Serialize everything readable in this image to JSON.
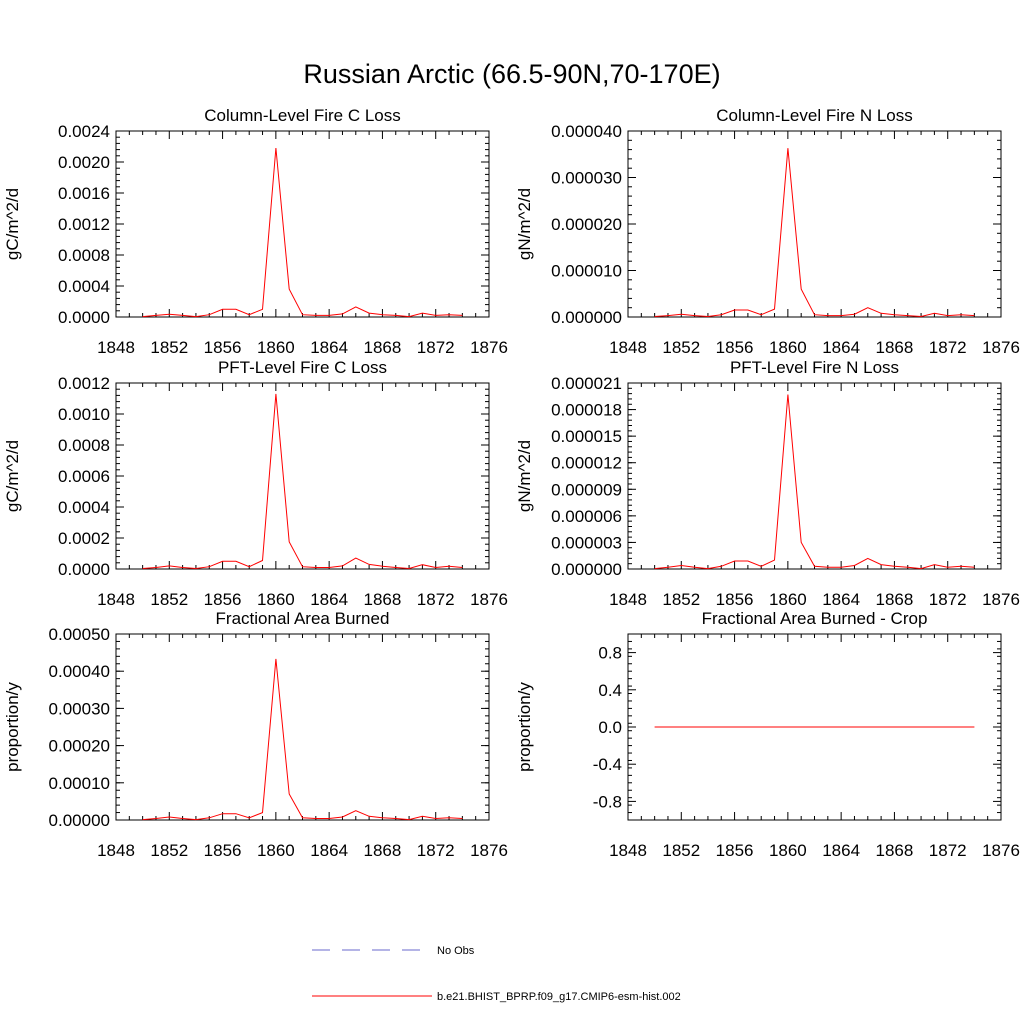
{
  "page_title": "Russian Arctic (66.5-90N,70-170E)",
  "colors": {
    "series": "#ff0000",
    "obs": "#6a6acd",
    "axis": "#000000"
  },
  "legend": {
    "entries": [
      {
        "label": "No Obs",
        "style": "dashed",
        "color": "#6a6acd"
      },
      {
        "label": "b.e21.BHIST_BPRP.f09_g17.CMIP6-esm-hist.002",
        "style": "solid",
        "color": "#ff0000"
      }
    ]
  },
  "chart_data": [
    {
      "type": "line",
      "title": "Column-Level Fire C Loss",
      "ylabel": "gC/m^2/d",
      "xlabel": "",
      "xlim": [
        1848,
        1876
      ],
      "xticks": [
        "1848",
        "1852",
        "1856",
        "1860",
        "1864",
        "1868",
        "1872",
        "1876"
      ],
      "ylim": [
        0,
        0.0024
      ],
      "yticks": [
        "0.0000",
        "0.0004",
        "0.0008",
        "0.0012",
        "0.0016",
        "0.0020",
        "0.0024"
      ],
      "x": [
        1850,
        1851,
        1852,
        1853,
        1854,
        1855,
        1856,
        1857,
        1858,
        1859,
        1860,
        1861,
        1862,
        1863,
        1864,
        1865,
        1866,
        1867,
        1868,
        1869,
        1870,
        1871,
        1872,
        1873,
        1874
      ],
      "series": [
        {
          "values": [
            5e-06,
            2e-05,
            3.5e-05,
            2e-05,
            5e-06,
            3e-05,
            0.0001,
            0.0001,
            3e-05,
            0.0001,
            0.00218,
            0.00036,
            3e-05,
            2e-05,
            2e-05,
            4e-05,
            0.00013,
            5e-05,
            3e-05,
            2e-05,
            5e-06,
            5e-05,
            2e-05,
            3e-05,
            2e-05
          ]
        }
      ]
    },
    {
      "type": "line",
      "title": "Column-Level Fire N Loss",
      "ylabel": "gN/m^2/d",
      "xlabel": "",
      "xlim": [
        1848,
        1876
      ],
      "xticks": [
        "1848",
        "1852",
        "1856",
        "1860",
        "1864",
        "1868",
        "1872",
        "1876"
      ],
      "ylim": [
        0,
        4e-05
      ],
      "yticks": [
        "0.000000",
        "0.000010",
        "0.000020",
        "0.000030",
        "0.000040"
      ],
      "x": [
        1850,
        1851,
        1852,
        1853,
        1854,
        1855,
        1856,
        1857,
        1858,
        1859,
        1860,
        1861,
        1862,
        1863,
        1864,
        1865,
        1866,
        1867,
        1868,
        1869,
        1870,
        1871,
        1872,
        1873,
        1874
      ],
      "series": [
        {
          "values": [
            1e-07,
            3e-07,
            6e-07,
            3e-07,
            1e-07,
            5e-07,
            1.5e-06,
            1.5e-06,
            5e-07,
            1.7e-06,
            3.63e-05,
            6e-06,
            5e-07,
            3e-07,
            3e-07,
            6e-07,
            2e-06,
            8e-07,
            5e-07,
            3e-07,
            1e-07,
            8e-07,
            3e-07,
            5e-07,
            3e-07
          ]
        }
      ]
    },
    {
      "type": "line",
      "title": "PFT-Level Fire C Loss",
      "ylabel": "gC/m^2/d",
      "xlabel": "",
      "xlim": [
        1848,
        1876
      ],
      "xticks": [
        "1848",
        "1852",
        "1856",
        "1860",
        "1864",
        "1868",
        "1872",
        "1876"
      ],
      "ylim": [
        0,
        0.0012
      ],
      "yticks": [
        "0.0000",
        "0.0002",
        "0.0004",
        "0.0006",
        "0.0008",
        "0.0010",
        "0.0012"
      ],
      "x": [
        1850,
        1851,
        1852,
        1853,
        1854,
        1855,
        1856,
        1857,
        1858,
        1859,
        1860,
        1861,
        1862,
        1863,
        1864,
        1865,
        1866,
        1867,
        1868,
        1869,
        1870,
        1871,
        1872,
        1873,
        1874
      ],
      "series": [
        {
          "values": [
            3e-06,
            1e-05,
            2e-05,
            1e-05,
            3e-06,
            1.5e-05,
            5e-05,
            5e-05,
            1.5e-05,
            5.5e-05,
            0.00113,
            0.000175,
            1.5e-05,
            1e-05,
            1e-05,
            2e-05,
            7e-05,
            3e-05,
            1.8e-05,
            1e-05,
            3e-06,
            2.8e-05,
            1e-05,
            1.8e-05,
            1e-05
          ]
        }
      ]
    },
    {
      "type": "line",
      "title": "PFT-Level Fire N Loss",
      "ylabel": "gN/m^2/d",
      "xlabel": "",
      "xlim": [
        1848,
        1876
      ],
      "xticks": [
        "1848",
        "1852",
        "1856",
        "1860",
        "1864",
        "1868",
        "1872",
        "1876"
      ],
      "ylim": [
        0,
        2.1e-05
      ],
      "yticks": [
        "0.000000",
        "0.000003",
        "0.000006",
        "0.000009",
        "0.000012",
        "0.000015",
        "0.000018",
        "0.000021"
      ],
      "x": [
        1850,
        1851,
        1852,
        1853,
        1854,
        1855,
        1856,
        1857,
        1858,
        1859,
        1860,
        1861,
        1862,
        1863,
        1864,
        1865,
        1866,
        1867,
        1868,
        1869,
        1870,
        1871,
        1872,
        1873,
        1874
      ],
      "series": [
        {
          "values": [
            5e-08,
            2e-07,
            4e-07,
            2e-07,
            5e-08,
            3e-07,
            9e-07,
            9e-07,
            3e-07,
            1e-06,
            1.97e-05,
            3e-06,
            3e-07,
            2e-07,
            2e-07,
            4e-07,
            1.2e-06,
            5e-07,
            3e-07,
            2e-07,
            5e-08,
            5e-07,
            2e-07,
            3e-07,
            2e-07
          ]
        }
      ]
    },
    {
      "type": "line",
      "title": "Fractional Area Burned",
      "ylabel": "proportion/y",
      "xlabel": "",
      "xlim": [
        1848,
        1876
      ],
      "xticks": [
        "1848",
        "1852",
        "1856",
        "1860",
        "1864",
        "1868",
        "1872",
        "1876"
      ],
      "ylim": [
        0,
        0.0005
      ],
      "yticks": [
        "0.00000",
        "0.00010",
        "0.00020",
        "0.00030",
        "0.00040",
        "0.00050"
      ],
      "x": [
        1850,
        1851,
        1852,
        1853,
        1854,
        1855,
        1856,
        1857,
        1858,
        1859,
        1860,
        1861,
        1862,
        1863,
        1864,
        1865,
        1866,
        1867,
        1868,
        1869,
        1870,
        1871,
        1872,
        1873,
        1874
      ],
      "series": [
        {
          "values": [
            1e-06,
            4e-06,
            8e-06,
            4e-06,
            1e-06,
            6e-06,
            1.7e-05,
            1.7e-05,
            6e-06,
            2e-05,
            0.000433,
            7e-05,
            6e-06,
            4e-06,
            4e-06,
            8e-06,
            2.5e-05,
            1e-05,
            6e-06,
            4e-06,
            1e-06,
            1e-05,
            4e-06,
            6e-06,
            4e-06
          ]
        }
      ]
    },
    {
      "type": "line",
      "title": "Fractional Area Burned - Crop",
      "ylabel": "proportion/y",
      "xlabel": "",
      "xlim": [
        1848,
        1876
      ],
      "xticks": [
        "1848",
        "1852",
        "1856",
        "1860",
        "1864",
        "1868",
        "1872",
        "1876"
      ],
      "ylim": [
        -1.0,
        1.0
      ],
      "yticks": [
        "-0.8",
        "-0.4",
        "0.0",
        "0.4",
        "0.8"
      ],
      "ytick_values": [
        -0.8,
        -0.4,
        0.0,
        0.4,
        0.8
      ],
      "x": [
        1850,
        1851,
        1852,
        1853,
        1854,
        1855,
        1856,
        1857,
        1858,
        1859,
        1860,
        1861,
        1862,
        1863,
        1864,
        1865,
        1866,
        1867,
        1868,
        1869,
        1870,
        1871,
        1872,
        1873,
        1874
      ],
      "series": [
        {
          "values": [
            0,
            0,
            0,
            0,
            0,
            0,
            0,
            0,
            0,
            0,
            0,
            0,
            0,
            0,
            0,
            0,
            0,
            0,
            0,
            0,
            0,
            0,
            0,
            0,
            0
          ]
        }
      ]
    }
  ]
}
